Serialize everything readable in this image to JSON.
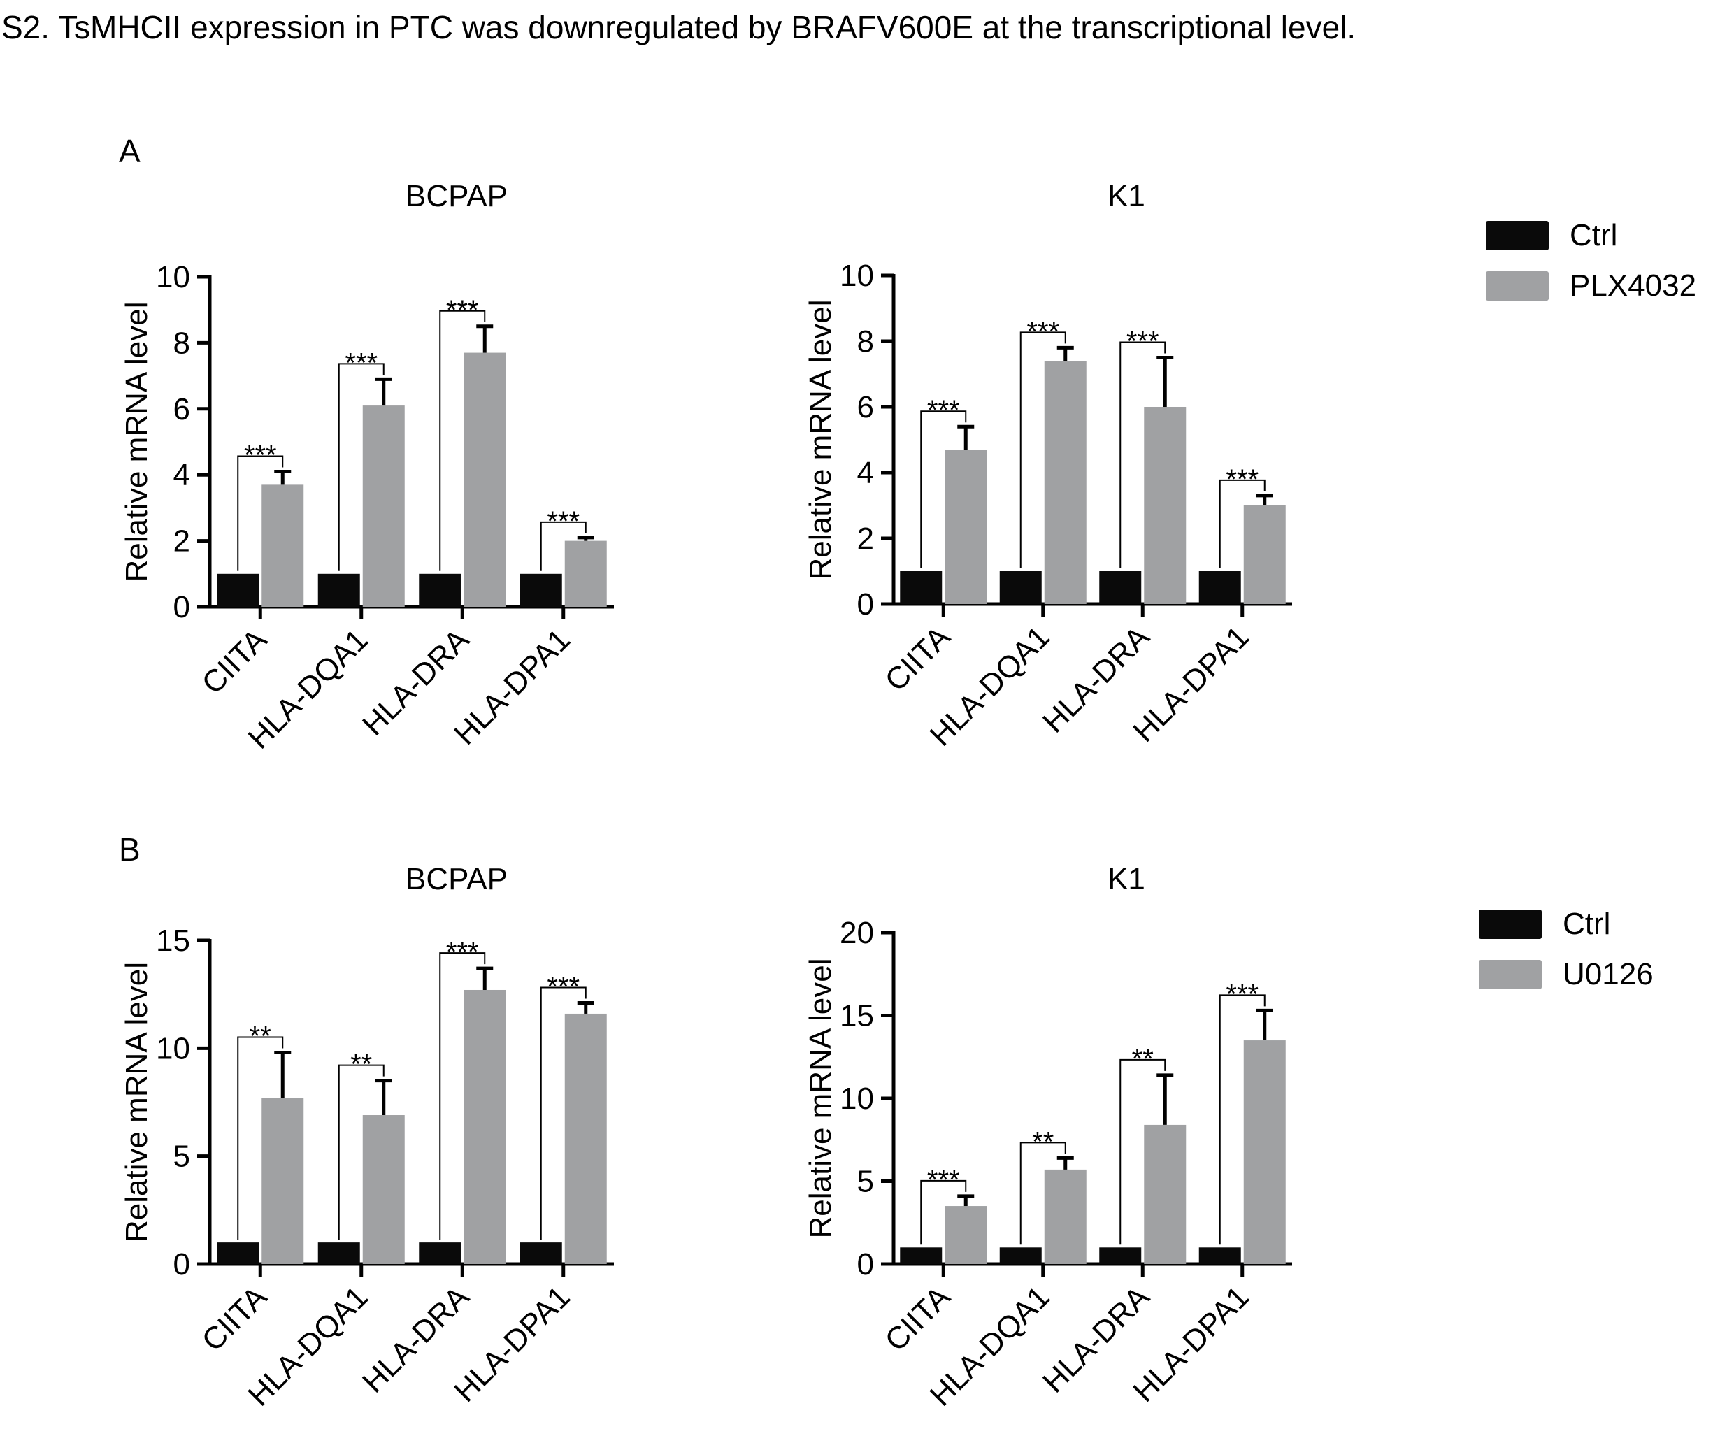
{
  "caption": "S2. TsMHCII expression in PTC was downregulated by BRAFV600E at the transcriptional level.",
  "colors": {
    "ctrl": "#0a0a0a",
    "treated": "#a0a1a3",
    "axis": "#000000"
  },
  "chart_data": [
    {
      "type": "bar",
      "panel": "A",
      "title": "BCPAP",
      "ylabel": "Relative mRNA level",
      "xlabel": "",
      "ylim": [
        0,
        10
      ],
      "yticks": [
        0,
        2,
        4,
        6,
        8,
        10
      ],
      "categories": [
        "CIITA",
        "HLA-DQA1",
        "HLA-DRA",
        "HLA-DPA1"
      ],
      "series": [
        {
          "name": "Ctrl",
          "values": [
            1,
            1,
            1,
            1
          ],
          "errors": [
            0,
            0,
            0,
            0
          ]
        },
        {
          "name": "PLX4032",
          "values": [
            3.7,
            6.1,
            7.7,
            2.0
          ],
          "errors": [
            0.4,
            0.8,
            0.8,
            0.1
          ]
        }
      ],
      "significance": [
        "***",
        "***",
        "***",
        "***"
      ]
    },
    {
      "type": "bar",
      "panel": "",
      "title": "K1",
      "ylabel": "Relative mRNA level",
      "xlabel": "",
      "ylim": [
        0,
        10
      ],
      "yticks": [
        0,
        2,
        4,
        6,
        8,
        10
      ],
      "categories": [
        "CIITA",
        "HLA-DQA1",
        "HLA-DRA",
        "HLA-DPA1"
      ],
      "series": [
        {
          "name": "Ctrl",
          "values": [
            1,
            1,
            1,
            1
          ],
          "errors": [
            0,
            0,
            0,
            0
          ]
        },
        {
          "name": "PLX4032",
          "values": [
            4.7,
            7.4,
            6.0,
            3.0
          ],
          "errors": [
            0.7,
            0.4,
            1.5,
            0.3
          ]
        }
      ],
      "significance": [
        "***",
        "***",
        "***",
        "***"
      ]
    },
    {
      "type": "bar",
      "panel": "B",
      "title": "BCPAP",
      "ylabel": "Relative mRNA level",
      "xlabel": "",
      "ylim": [
        0,
        15
      ],
      "yticks": [
        0,
        5,
        10,
        15
      ],
      "categories": [
        "CIITA",
        "HLA-DQA1",
        "HLA-DRA",
        "HLA-DPA1"
      ],
      "series": [
        {
          "name": "Ctrl",
          "values": [
            1,
            1,
            1,
            1
          ],
          "errors": [
            0,
            0,
            0,
            0
          ]
        },
        {
          "name": "U0126",
          "values": [
            7.7,
            6.9,
            12.7,
            11.6
          ],
          "errors": [
            2.1,
            1.6,
            1.0,
            0.5
          ]
        }
      ],
      "significance": [
        "**",
        "**",
        "***",
        "***"
      ]
    },
    {
      "type": "bar",
      "panel": "",
      "title": "K1",
      "ylabel": "Relative mRNA level",
      "xlabel": "",
      "ylim": [
        0,
        20
      ],
      "yticks": [
        0,
        5,
        10,
        15,
        20
      ],
      "categories": [
        "CIITA",
        "HLA-DQA1",
        "HLA-DRA",
        "HLA-DPA1"
      ],
      "series": [
        {
          "name": "Ctrl",
          "values": [
            1,
            1,
            1,
            1
          ],
          "errors": [
            0,
            0,
            0,
            0
          ]
        },
        {
          "name": "U0126",
          "values": [
            3.5,
            5.7,
            8.4,
            13.5
          ],
          "errors": [
            0.6,
            0.7,
            3.0,
            1.8
          ]
        }
      ],
      "significance": [
        "***",
        "**",
        "**",
        "***"
      ]
    }
  ],
  "legends": [
    {
      "entries": [
        "Ctrl",
        "PLX4032"
      ]
    },
    {
      "entries": [
        "Ctrl",
        "U0126"
      ]
    }
  ]
}
